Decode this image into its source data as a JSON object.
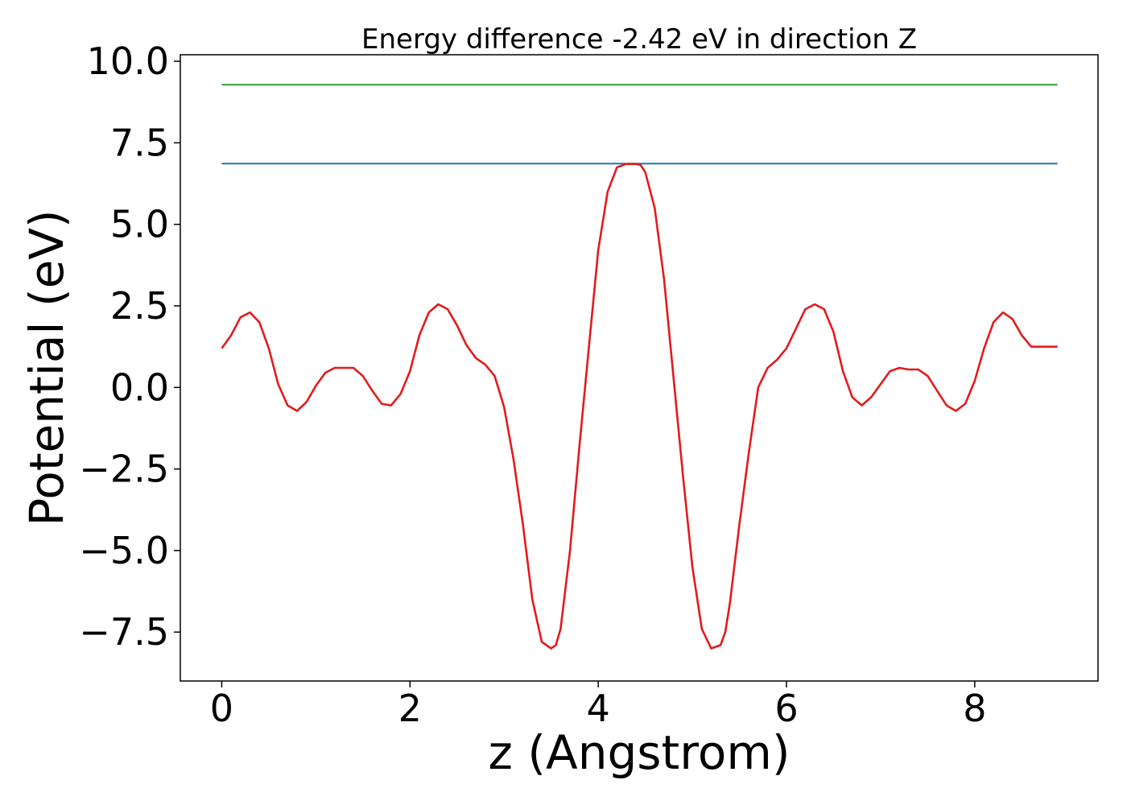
{
  "chart_data": {
    "type": "line",
    "title": "Energy difference -2.42 eV in direction Z",
    "xlabel": "z (Angstrom)",
    "ylabel": "Potential (eV)",
    "xlim": [
      -0.44,
      9.31
    ],
    "ylim": [
      -9.0,
      10.2
    ],
    "xticks": [
      0,
      2,
      4,
      6,
      8
    ],
    "xtick_labels": [
      "0",
      "2",
      "4",
      "6",
      "8"
    ],
    "yticks": [
      -7.5,
      -5.0,
      -2.5,
      0.0,
      2.5,
      5.0,
      7.5,
      10.0
    ],
    "ytick_labels": [
      "−7.5",
      "−5.0",
      "−2.5",
      "0.0",
      "2.5",
      "5.0",
      "7.5",
      "10.0"
    ],
    "grid": false,
    "legend": "none",
    "series": [
      {
        "color": "#2ca02c",
        "x": [
          0.0,
          8.88
        ],
        "y": [
          9.28,
          9.28
        ]
      },
      {
        "color": "#1f77b4",
        "x": [
          0.0,
          8.88
        ],
        "y": [
          6.86,
          6.86
        ]
      },
      {
        "color": "#e41a1c",
        "x": [
          0.0,
          0.1,
          0.2,
          0.3,
          0.4,
          0.5,
          0.6,
          0.7,
          0.8,
          0.9,
          1.0,
          1.1,
          1.2,
          1.3,
          1.4,
          1.5,
          1.6,
          1.7,
          1.8,
          1.9,
          2.0,
          2.1,
          2.2,
          2.3,
          2.4,
          2.5,
          2.6,
          2.7,
          2.8,
          2.9,
          3.0,
          3.1,
          3.2,
          3.3,
          3.4,
          3.5,
          3.55,
          3.6,
          3.7,
          3.8,
          3.9,
          4.0,
          4.1,
          4.2,
          4.3,
          4.4,
          4.45,
          4.5,
          4.6,
          4.7,
          4.8,
          4.9,
          5.0,
          5.1,
          5.2,
          5.3,
          5.35,
          5.4,
          5.5,
          5.6,
          5.7,
          5.8,
          5.9,
          6.0,
          6.1,
          6.2,
          6.3,
          6.4,
          6.5,
          6.6,
          6.7,
          6.8,
          6.9,
          7.0,
          7.1,
          7.2,
          7.3,
          7.4,
          7.5,
          7.6,
          7.7,
          7.8,
          7.9,
          8.0,
          8.1,
          8.2,
          8.3,
          8.4,
          8.5,
          8.6,
          8.7,
          8.8,
          8.88
        ],
        "y": [
          1.2,
          1.6,
          2.15,
          2.3,
          2.0,
          1.2,
          0.1,
          -0.55,
          -0.72,
          -0.45,
          0.05,
          0.45,
          0.6,
          0.6,
          0.6,
          0.35,
          -0.1,
          -0.5,
          -0.55,
          -0.2,
          0.5,
          1.6,
          2.3,
          2.55,
          2.4,
          1.9,
          1.3,
          0.9,
          0.7,
          0.35,
          -0.6,
          -2.2,
          -4.2,
          -6.5,
          -7.8,
          -8.0,
          -7.9,
          -7.4,
          -5.0,
          -1.8,
          1.2,
          4.2,
          6.0,
          6.75,
          6.85,
          6.85,
          6.82,
          6.6,
          5.5,
          3.3,
          0.3,
          -2.7,
          -5.5,
          -7.4,
          -8.0,
          -7.9,
          -7.5,
          -6.6,
          -4.2,
          -2.0,
          0.0,
          0.6,
          0.85,
          1.2,
          1.8,
          2.4,
          2.55,
          2.4,
          1.7,
          0.5,
          -0.3,
          -0.55,
          -0.3,
          0.1,
          0.5,
          0.6,
          0.55,
          0.55,
          0.35,
          -0.1,
          -0.55,
          -0.72,
          -0.5,
          0.2,
          1.2,
          2.0,
          2.3,
          2.1,
          1.6,
          1.25,
          1.25,
          1.25,
          1.25
        ]
      }
    ]
  }
}
